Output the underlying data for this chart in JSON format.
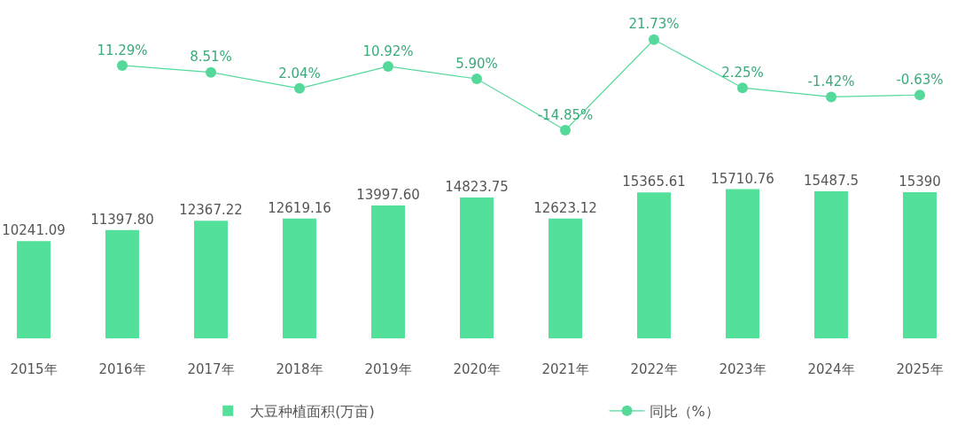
{
  "chart_data": [
    {
      "type": "line",
      "categories": [
        "2015年",
        "2016年",
        "2017年",
        "2018年",
        "2019年",
        "2020年",
        "2021年",
        "2022年",
        "2023年",
        "2024年",
        "2025年"
      ],
      "series": [
        {
          "name": "同比（%）",
          "color": "#55d99b",
          "values": [
            null,
            11.29,
            8.51,
            2.04,
            10.92,
            5.9,
            -14.85,
            21.73,
            2.25,
            -1.42,
            -0.63
          ],
          "value_labels": [
            null,
            "11.29%",
            "8.51%",
            "2.04%",
            "10.92%",
            "5.90%",
            "-14.85%",
            "21.73%",
            "2.25%",
            "-1.42%",
            "-0.63%"
          ]
        }
      ],
      "legend": "bottom",
      "tick_labels": false,
      "marker": "circle",
      "line_style": "solid"
    },
    {
      "type": "bar",
      "categories": [
        "2015年",
        "2016年",
        "2017年",
        "2018年",
        "2019年",
        "2020年",
        "2021年",
        "2022年",
        "2023年",
        "2024年",
        "2025年"
      ],
      "series": [
        {
          "name": "大豆种植面积(万亩)",
          "color": "#52e09a",
          "values": [
            10241.09,
            11397.8,
            12367.22,
            12619.16,
            13997.6,
            14823.75,
            12623.12,
            15365.61,
            15710.76,
            15487.5,
            15390
          ],
          "value_labels": [
            "10241.09",
            "11397.80",
            "12367.22",
            "12619.16",
            "13997.60",
            "14823.75",
            "12623.12",
            "15365.61",
            "15710.76",
            "15487.5",
            "15390"
          ]
        }
      ],
      "legend": "bottom",
      "tick_labels": "x"
    }
  ]
}
